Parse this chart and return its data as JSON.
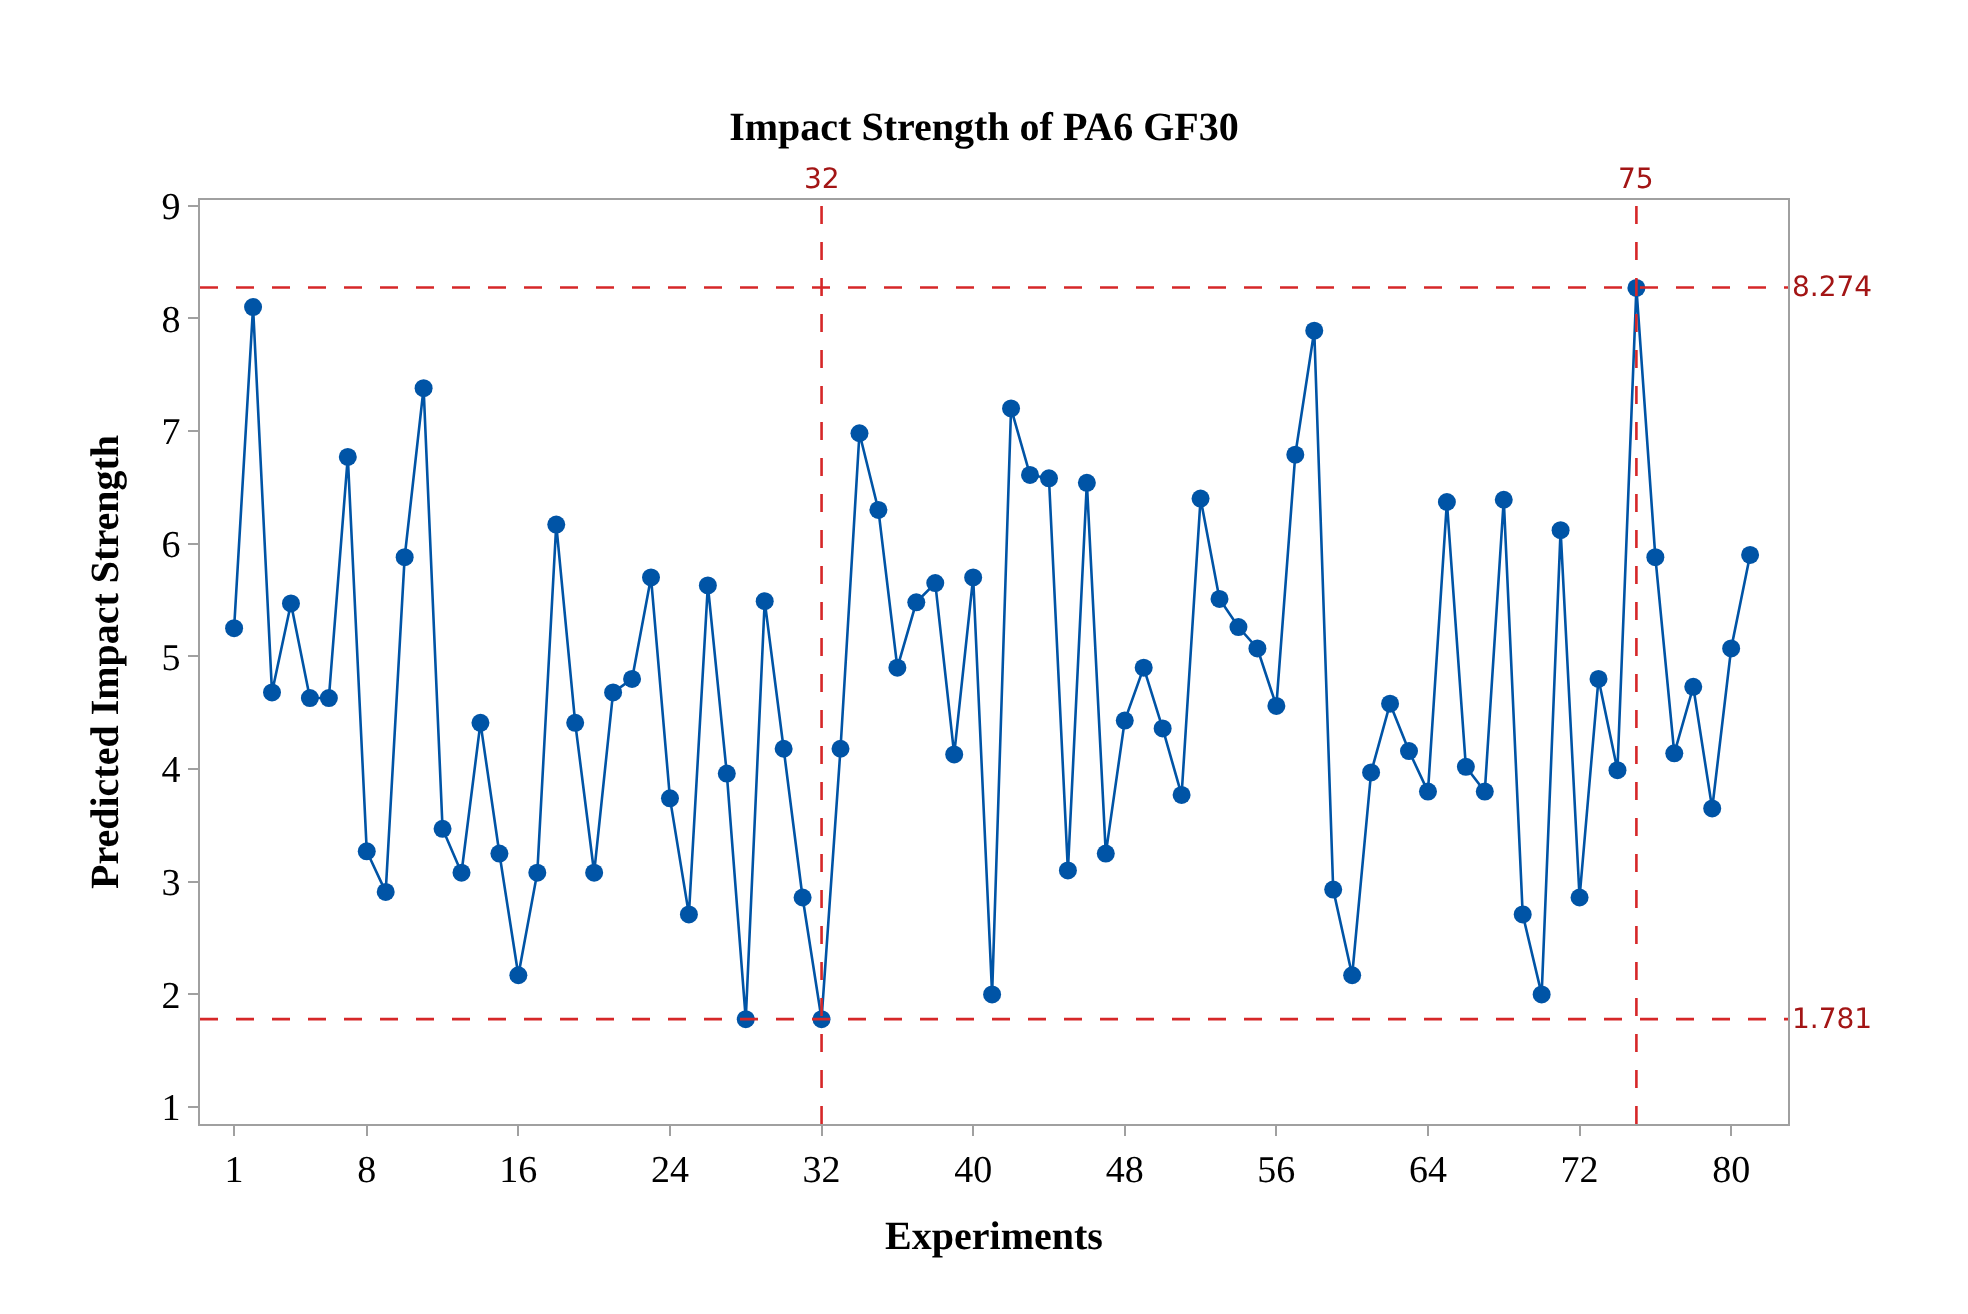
{
  "chart_data": {
    "type": "line",
    "title": "Impact Strength of PA6 GF30",
    "xlabel": "Experiments",
    "ylabel": "Predicted Impact Strength",
    "x": [
      1,
      2,
      3,
      4,
      5,
      6,
      7,
      8,
      9,
      10,
      11,
      12,
      13,
      14,
      15,
      16,
      17,
      18,
      19,
      20,
      21,
      22,
      23,
      24,
      25,
      26,
      27,
      28,
      29,
      30,
      31,
      32,
      33,
      34,
      35,
      36,
      37,
      38,
      39,
      40,
      41,
      42,
      43,
      44,
      45,
      46,
      47,
      48,
      49,
      50,
      51,
      52,
      53,
      54,
      55,
      56,
      57,
      58,
      59,
      60,
      61,
      62,
      63,
      64,
      65,
      66,
      67,
      68,
      69,
      70,
      71,
      72,
      73,
      74,
      75,
      76,
      77,
      78,
      79,
      80,
      81
    ],
    "series": [
      {
        "color": "#0054a6",
        "values": [
          5.25,
          8.1,
          4.68,
          5.47,
          4.63,
          4.63,
          6.77,
          3.27,
          2.91,
          5.88,
          7.38,
          3.47,
          3.08,
          4.41,
          3.25,
          2.17,
          3.08,
          6.17,
          4.41,
          3.08,
          4.68,
          4.8,
          5.7,
          3.74,
          2.71,
          5.63,
          3.96,
          1.78,
          5.49,
          4.18,
          2.86,
          1.78,
          4.18,
          6.98,
          6.3,
          4.9,
          5.48,
          5.65,
          4.13,
          5.7,
          2.0,
          7.2,
          6.61,
          6.58,
          3.1,
          6.54,
          3.25,
          4.43,
          4.9,
          4.36,
          3.77,
          6.4,
          5.51,
          5.26,
          5.07,
          4.56,
          6.79,
          7.89,
          2.93,
          2.17,
          3.97,
          4.58,
          4.16,
          3.8,
          6.37,
          4.02,
          3.8,
          6.39,
          2.71,
          2.0,
          6.12,
          2.86,
          4.8,
          3.99,
          8.27,
          5.88,
          4.14,
          4.73,
          3.65,
          5.07,
          5.9
        ]
      }
    ],
    "xlim": [
      -0.8,
      83
    ],
    "xticks": [
      1,
      8,
      16,
      24,
      32,
      40,
      48,
      56,
      64,
      72,
      80
    ],
    "ylim": [
      0.85,
      9.05
    ],
    "yticks": [
      1,
      2,
      3,
      4,
      5,
      6,
      7,
      8,
      9
    ],
    "ref_lines": [
      {
        "axis": "x",
        "value": 32,
        "label": "32",
        "color": "#d62728",
        "line_style": "dashed"
      },
      {
        "axis": "x",
        "value": 75,
        "label": "75",
        "color": "#d62728",
        "line_style": "dashed"
      },
      {
        "axis": "y",
        "value": 8.274,
        "label": "8.274",
        "color": "#d62728",
        "line_style": "dashed"
      },
      {
        "axis": "y",
        "value": 1.781,
        "label": "1.781",
        "color": "#d62728",
        "line_style": "dashed"
      }
    ],
    "marker": "circle",
    "line_style": "solid"
  }
}
